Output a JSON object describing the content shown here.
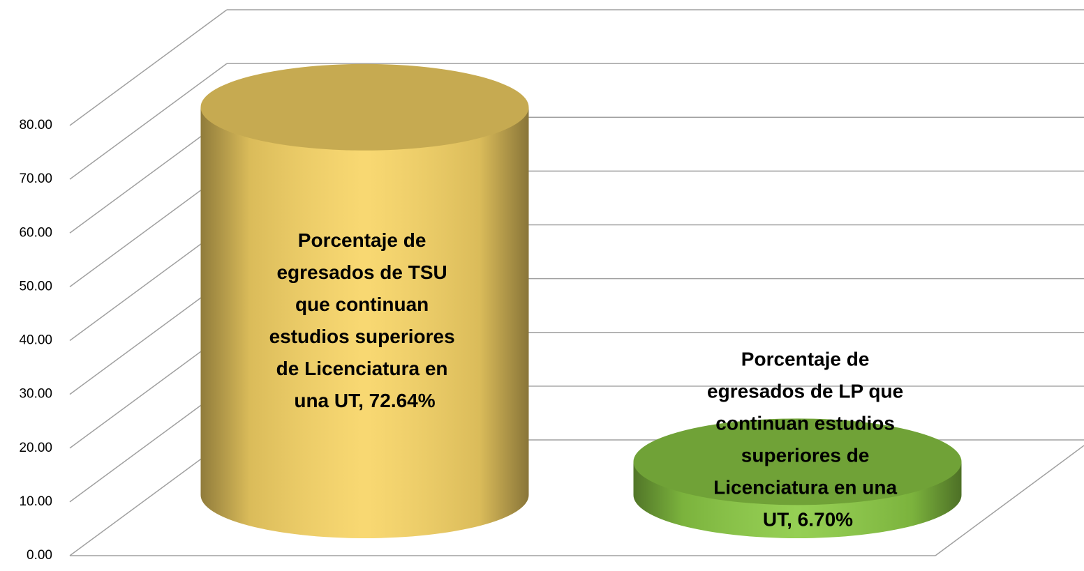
{
  "chart_data": {
    "type": "cylinder",
    "categories": [
      null,
      null
    ],
    "values": [
      72.64,
      6.7
    ],
    "value_labels": [
      "Porcentaje de egresados de TSU que continuan estudios superiores de Licenciatura en una UT, 72.64%",
      "Porcentaje de egresados de LP que continuan estudios superiores de Licenciatura en una UT, 6.70%"
    ],
    "colors": [
      "#f8d566",
      "#8ccb45"
    ],
    "ylim": [
      0,
      80
    ],
    "yticks": [
      {
        "value": 0,
        "label": "0.00"
      },
      {
        "value": 10,
        "label": "10.00"
      },
      {
        "value": 20,
        "label": "20.00"
      },
      {
        "value": 30,
        "label": "30.00"
      },
      {
        "value": 40,
        "label": "40.00"
      },
      {
        "value": 50,
        "label": "50.00"
      },
      {
        "value": 60,
        "label": "60.00"
      },
      {
        "value": 70,
        "label": "70.00"
      },
      {
        "value": 80,
        "label": "80.00"
      }
    ],
    "grid": true
  }
}
